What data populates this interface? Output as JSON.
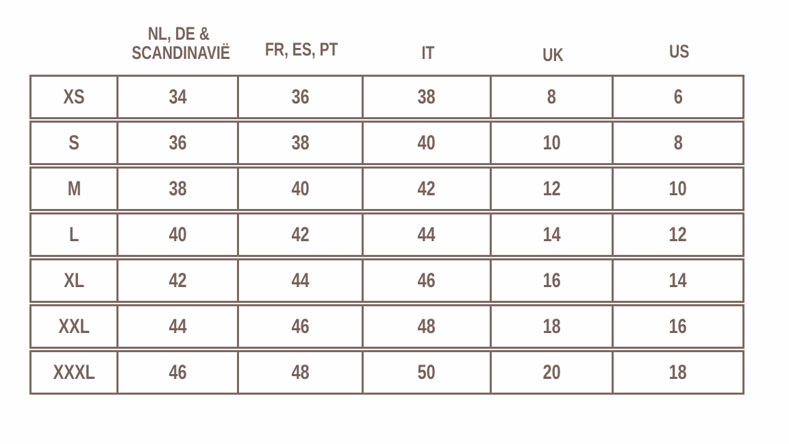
{
  "colors": {
    "text": "#76615b",
    "border": "#7b6862",
    "background": "#fefefe"
  },
  "header": {
    "col1_line1": "NL, DE &",
    "col1_line2": "SCANDINAVIË",
    "col2": "FR, ES, PT",
    "col3": "IT",
    "col4": "UK",
    "col5": "US"
  },
  "chart_data": {
    "type": "table",
    "columns": [
      "",
      "NL, DE & SCANDINAVIË",
      "FR, ES, PT",
      "IT",
      "UK",
      "US"
    ],
    "rows": [
      [
        "XS",
        34,
        36,
        38,
        8,
        6
      ],
      [
        "S",
        36,
        38,
        40,
        10,
        8
      ],
      [
        "M",
        38,
        40,
        42,
        12,
        10
      ],
      [
        "L",
        40,
        42,
        44,
        14,
        12
      ],
      [
        "XL",
        42,
        44,
        46,
        16,
        14
      ],
      [
        "XXL",
        44,
        46,
        48,
        18,
        16
      ],
      [
        "XXXL",
        46,
        48,
        50,
        20,
        18
      ]
    ]
  }
}
